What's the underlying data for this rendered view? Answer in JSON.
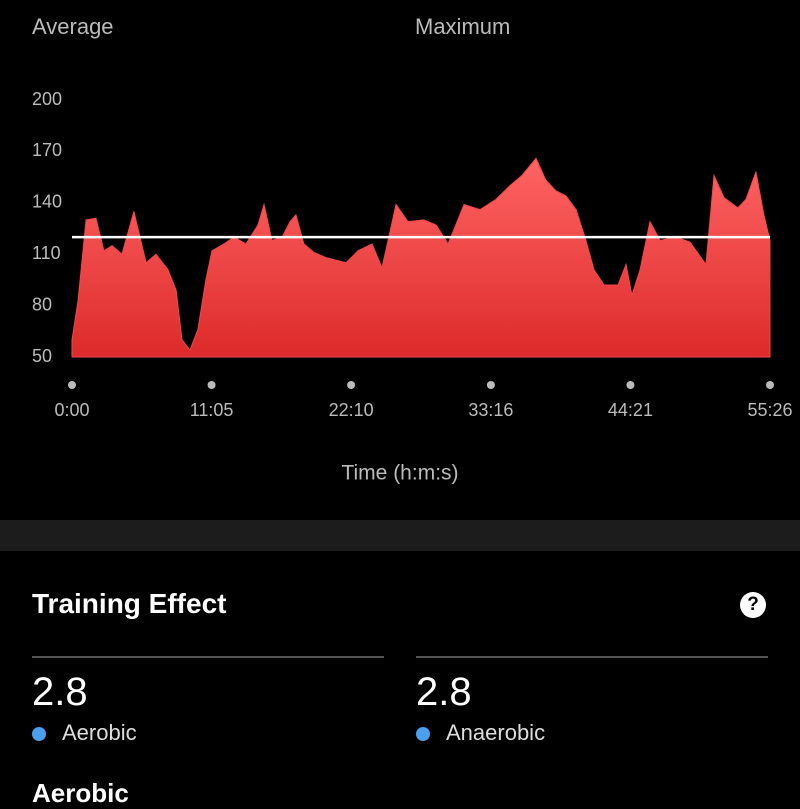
{
  "header": {
    "average_label": "Average",
    "maximum_label": "Maximum"
  },
  "chart_data": {
    "type": "area",
    "x_label": "Time (h:m:s)",
    "x": [
      0,
      29,
      67,
      114,
      152,
      191,
      238,
      295,
      353,
      400,
      457,
      496,
      524,
      562,
      600,
      638,
      667,
      724,
      772,
      829,
      886,
      915,
      953,
      1001,
      1039,
      1067,
      1105,
      1153,
      1210,
      1306,
      1363,
      1430,
      1477,
      1544,
      1601,
      1677,
      1735,
      1792,
      1868,
      1944,
      2020,
      2087,
      2144,
      2211,
      2259,
      2306,
      2354,
      2402,
      2449,
      2487,
      2535,
      2602,
      2640,
      2668,
      2707,
      2754,
      2802,
      2878,
      2945,
      3021,
      3059,
      3107,
      3173,
      3211,
      3259,
      3297,
      3326
    ],
    "series": [
      {
        "color": "#f04848",
        "values": [
          60,
          83,
          130,
          131,
          112,
          115,
          110,
          135,
          105,
          110,
          101,
          89,
          60,
          54,
          66,
          95,
          112,
          116,
          120,
          116,
          127,
          139,
          118,
          120,
          129,
          133,
          116,
          111,
          108,
          105,
          112,
          116,
          102,
          139,
          129,
          130,
          127,
          116,
          139,
          136,
          142,
          150,
          156,
          166,
          153,
          147,
          144,
          136,
          118,
          101,
          92,
          92,
          104,
          86,
          101,
          129,
          118,
          120,
          117,
          104,
          156,
          143,
          137,
          142,
          158,
          133,
          118
        ]
      }
    ],
    "average_line": {
      "value": 120,
      "color": "#ffffff"
    },
    "xlim": [
      0,
      3326
    ],
    "ylim": [
      50,
      200
    ],
    "xticks": [
      {
        "value": 0,
        "label": "0:00"
      },
      {
        "value": 665,
        "label": "11:05"
      },
      {
        "value": 1330,
        "label": "22:10"
      },
      {
        "value": 1996,
        "label": "33:16"
      },
      {
        "value": 2661,
        "label": "44:21"
      },
      {
        "value": 3326,
        "label": "55:26"
      }
    ],
    "yticks": [
      50,
      80,
      110,
      140,
      170,
      200
    ]
  },
  "training_effect": {
    "title": "Training Effect",
    "help_icon": "?",
    "cards": [
      {
        "value": "2.8",
        "label": "Aerobic"
      },
      {
        "value": "2.8",
        "label": "Anaerobic"
      }
    ],
    "next_heading": "Aerobic"
  }
}
